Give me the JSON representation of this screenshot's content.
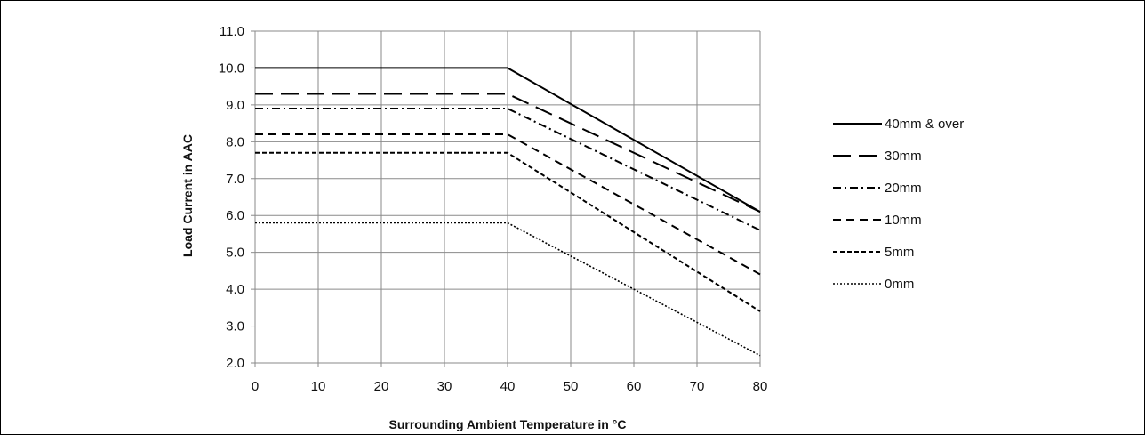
{
  "chart_data": {
    "type": "line",
    "title": "",
    "xlabel": "Surrounding Ambient Temperature in °C",
    "ylabel": "Load Current in AAC",
    "xlim": [
      0,
      80
    ],
    "ylim": [
      2.0,
      11.0
    ],
    "x_ticks": [
      "0",
      "10",
      "20",
      "30",
      "40",
      "50",
      "60",
      "70",
      "80"
    ],
    "y_ticks": [
      "2.0",
      "3.0",
      "4.0",
      "5.0",
      "6.0",
      "7.0",
      "8.0",
      "9.0",
      "10.0",
      "11.0"
    ],
    "grid": true,
    "legend_position": "right",
    "x": [
      0,
      40,
      80
    ],
    "series": [
      {
        "name": "40mm & over",
        "values": [
          10.0,
          10.0,
          6.1
        ],
        "dash": "solid",
        "color": "#000000"
      },
      {
        "name": "30mm",
        "values": [
          9.3,
          9.3,
          6.1
        ],
        "dash": "longdash",
        "color": "#000000"
      },
      {
        "name": "20mm",
        "values": [
          8.9,
          8.9,
          5.6
        ],
        "dash": "dashdot",
        "color": "#000000"
      },
      {
        "name": "10mm",
        "values": [
          8.2,
          8.2,
          4.4
        ],
        "dash": "dash",
        "color": "#000000"
      },
      {
        "name": "5mm",
        "values": [
          7.7,
          7.7,
          3.4
        ],
        "dash": "shortdash",
        "color": "#000000"
      },
      {
        "name": "0mm",
        "values": [
          5.8,
          5.8,
          2.2
        ],
        "dash": "dot",
        "color": "#000000"
      }
    ]
  }
}
